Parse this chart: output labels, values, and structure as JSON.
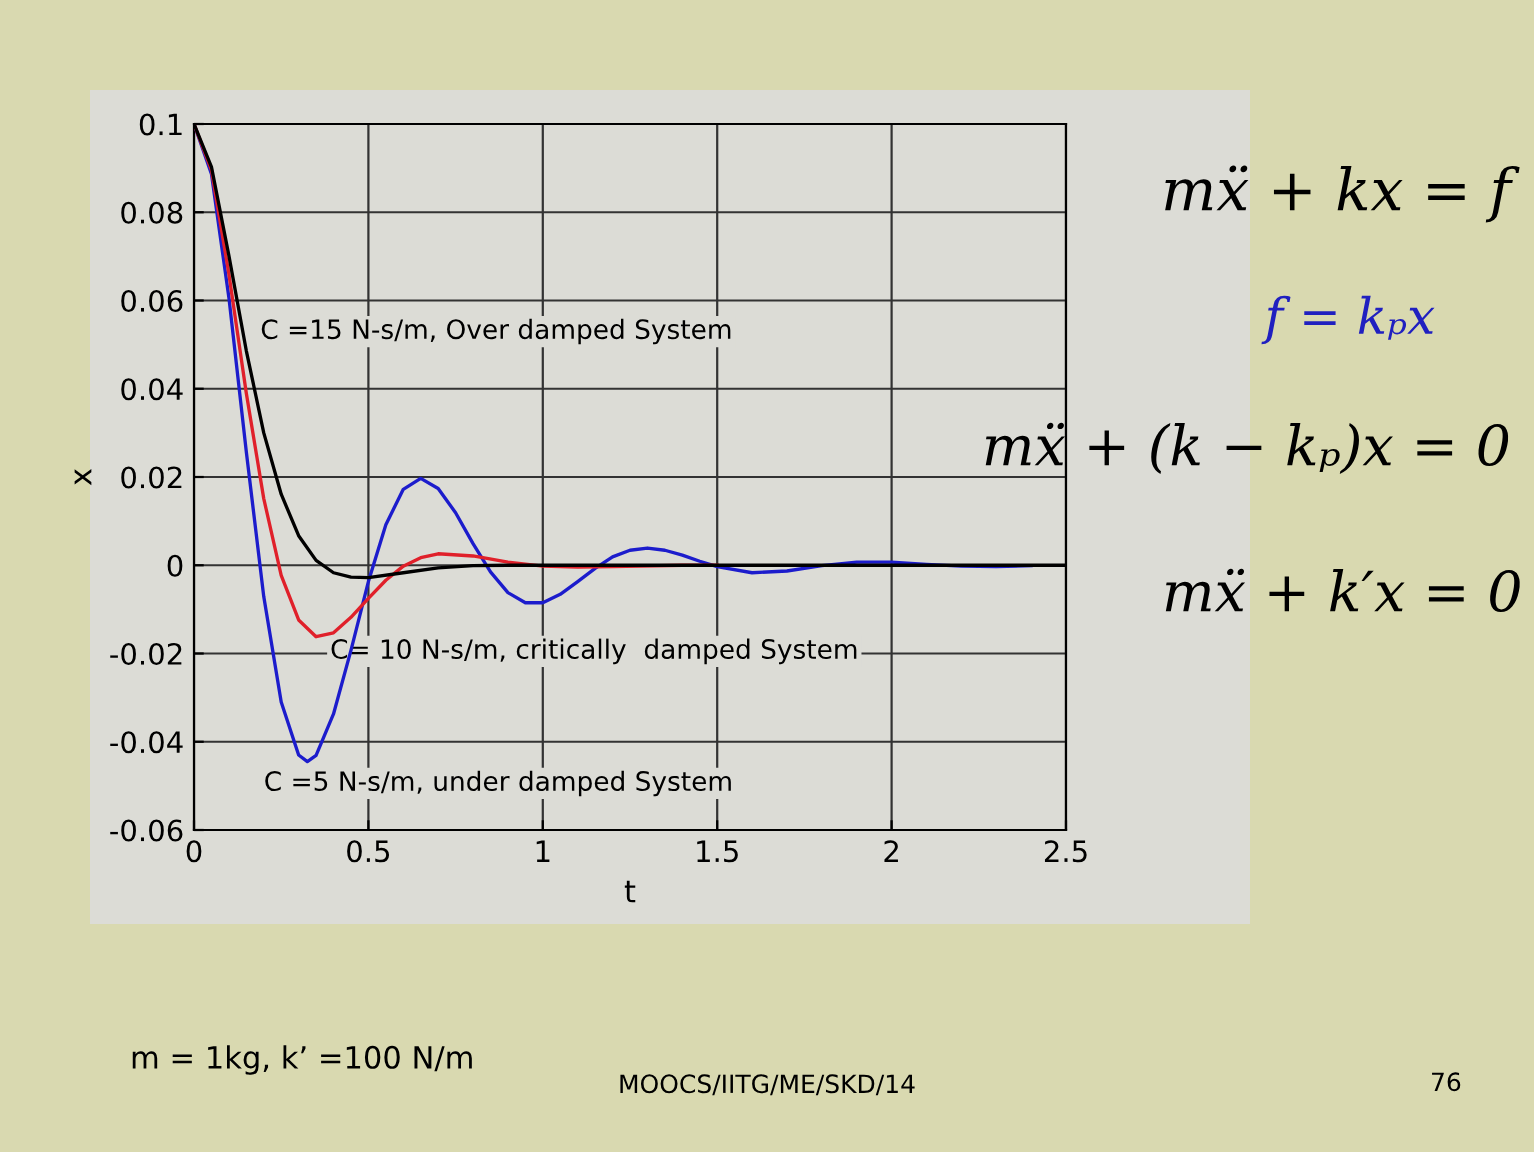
{
  "chart_data": {
    "type": "line",
    "xlabel": "t",
    "ylabel": "x",
    "xlim": [
      0,
      2.5
    ],
    "ylim": [
      -0.06,
      0.1
    ],
    "xticks": [
      0,
      0.5,
      1,
      1.5,
      2,
      2.5
    ],
    "yticks": [
      -0.06,
      -0.04,
      -0.02,
      0,
      0.02,
      0.04,
      0.06,
      0.08,
      0.1
    ],
    "grid": true,
    "line_style": "solid",
    "series": [
      {
        "color": "#1c1ccc",
        "x": [
          0,
          0.05,
          0.1,
          0.15,
          0.2,
          0.25,
          0.3,
          0.325,
          0.35,
          0.4,
          0.45,
          0.5,
          0.55,
          0.6,
          0.65,
          0.7,
          0.75,
          0.8,
          0.85,
          0.9,
          0.95,
          1.0,
          1.05,
          1.1,
          1.15,
          1.2,
          1.25,
          1.3,
          1.35,
          1.4,
          1.45,
          1.5,
          1.6,
          1.7,
          1.8,
          1.9,
          2.0,
          2.1,
          2.2,
          2.3,
          2.4
        ],
        "values": [
          0.1,
          0.0887,
          0.0607,
          0.0257,
          -0.0071,
          -0.031,
          -0.043,
          -0.0445,
          -0.0431,
          -0.0337,
          -0.0193,
          -0.0037,
          0.0092,
          0.0172,
          0.0197,
          0.0174,
          0.0119,
          0.0049,
          -0.0015,
          -0.0062,
          -0.0085,
          -0.0085,
          -0.0066,
          -0.0037,
          -0.0007,
          0.0019,
          0.0034,
          0.0039,
          0.0034,
          0.0023,
          0.0009,
          -0.0003,
          -0.0017,
          -0.0013,
          -0.0001,
          0.0007,
          0.0007,
          0.0002,
          -0.0002,
          -0.0003,
          -0.0001
        ]
      },
      {
        "color": "#e0202a",
        "x": [
          0,
          0.05,
          0.1,
          0.15,
          0.2,
          0.25,
          0.3,
          0.35,
          0.4,
          0.45,
          0.5,
          0.55,
          0.6,
          0.65,
          0.7,
          0.8,
          0.9,
          1.0,
          1.1,
          1.2,
          1.4,
          1.5
        ],
        "values": [
          0.1,
          0.0896,
          0.066,
          0.039,
          0.0151,
          -0.0023,
          -0.0124,
          -0.0162,
          -0.0153,
          -0.0118,
          -0.0075,
          -0.0034,
          -0.0002,
          0.0017,
          0.0026,
          0.0021,
          0.0007,
          -0.0002,
          -0.0004,
          -0.0003,
          0,
          0
        ]
      },
      {
        "color": "#000000",
        "x": [
          0,
          0.05,
          0.1,
          0.15,
          0.2,
          0.25,
          0.3,
          0.35,
          0.4,
          0.45,
          0.5,
          0.6,
          0.7,
          0.8,
          0.9,
          1.5,
          2.0,
          2.5
        ],
        "values": [
          0.1,
          0.0903,
          0.0702,
          0.0486,
          0.03,
          0.0161,
          0.0067,
          0.0011,
          -0.0017,
          -0.0027,
          -0.0028,
          -0.0017,
          -0.0006,
          -0.0001,
          0,
          0,
          0,
          0
        ]
      }
    ],
    "annotations": [
      "C =15 N-s/m, Over damped System",
      "C= 10 N-s/m, critically  damped System",
      "C =5 N-s/m, under damped System",
      "mẍ + kx = f",
      "f = kₚx",
      "mẍ + (k − kₚ)x = 0",
      "mẍ + k′x = 0",
      "m = 1kg, k’ =100 N/m",
      "MOOCS/IITG/ME/SKD/14",
      "76"
    ]
  }
}
